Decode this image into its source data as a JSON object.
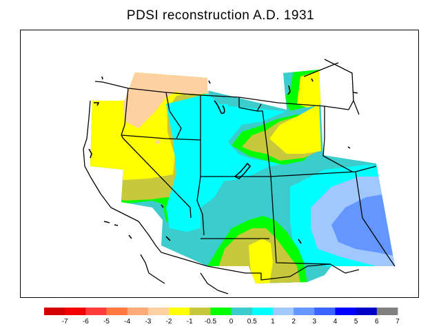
{
  "title": "PDSI reconstruction A.D. 1931",
  "legend": {
    "colors": [
      "#d40000",
      "#f00000",
      "#ff3c3c",
      "#ff7840",
      "#ffa878",
      "#ffd0a0",
      "#ffff00",
      "#c8c83c",
      "#00ff00",
      "#3ccccc",
      "#00ffff",
      "#a0c8ff",
      "#6496ff",
      "#3c64ff",
      "#0000ff",
      "#0000c8",
      "#808080"
    ],
    "ticks": [
      "-7",
      "-6",
      "-5",
      "-4",
      "-3",
      "-2",
      "-1",
      "-0.5",
      "0",
      "0.5",
      "1",
      "2",
      "3",
      "4",
      "5",
      "6",
      "7"
    ]
  },
  "palette": {
    "pale_orange": "#ffd0a0",
    "yellow": "#ffff00",
    "olive": "#c8c83c",
    "green": "#00ff00",
    "teal": "#3ccccc",
    "cyan": "#00ffff",
    "light_blue": "#a0c8ff",
    "mid_blue": "#6496ff"
  }
}
